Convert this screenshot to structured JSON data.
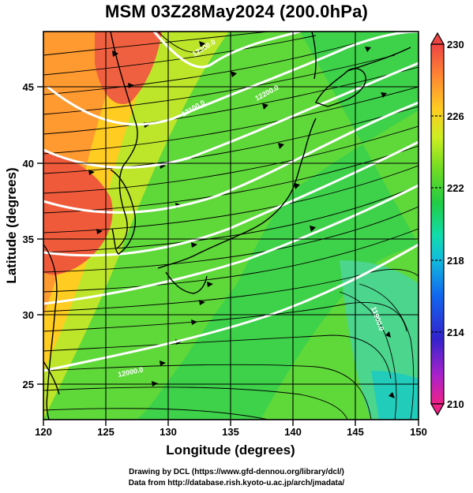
{
  "title": "MSM 03Z28May2024 (200.0hPa)",
  "credits": {
    "line1": "Drawing by DCL (https://www.gfd-dennou.org/library/dcl/)",
    "line2": "Data from http://database.rish.kyoto-u.ac.jp/arch/jmadata/"
  },
  "chart_data": {
    "type": "heatmap",
    "xlabel": "Longitude (degrees)",
    "ylabel": "Latitude  (degrees)",
    "xlim": [
      120,
      150
    ],
    "ylim": [
      22.4,
      47.6
    ],
    "x_ticks": [
      "120",
      "125",
      "130",
      "135",
      "140",
      "145",
      "150"
    ],
    "x_tick_values": [
      120,
      125,
      130,
      135,
      140,
      145,
      150
    ],
    "y_ticks": [
      "25",
      "30",
      "35",
      "40",
      "45"
    ],
    "y_tick_values": [
      25,
      30,
      35,
      40,
      45
    ],
    "grid": true,
    "colorbar": {
      "min": 210,
      "max": 230,
      "labels": [
        "230",
        "226",
        "222",
        "218",
        "214",
        "210"
      ],
      "label_values": [
        230,
        226,
        222,
        218,
        214,
        210
      ],
      "colors": [
        "#ee2288",
        "#aa22cc",
        "#3322cc",
        "#1166ee",
        "#11bbdd",
        "#11ddaa",
        "#22cc44",
        "#77dd22",
        "#ccee22",
        "#ffcc22",
        "#ff8833",
        "#ee4444"
      ]
    },
    "contour_labels": [
      "12300.0",
      "12200.0",
      "12100.0",
      "12000.0",
      "11900.0"
    ],
    "contour_label_values": [
      12300,
      12200,
      12100,
      12000,
      11900
    ]
  }
}
